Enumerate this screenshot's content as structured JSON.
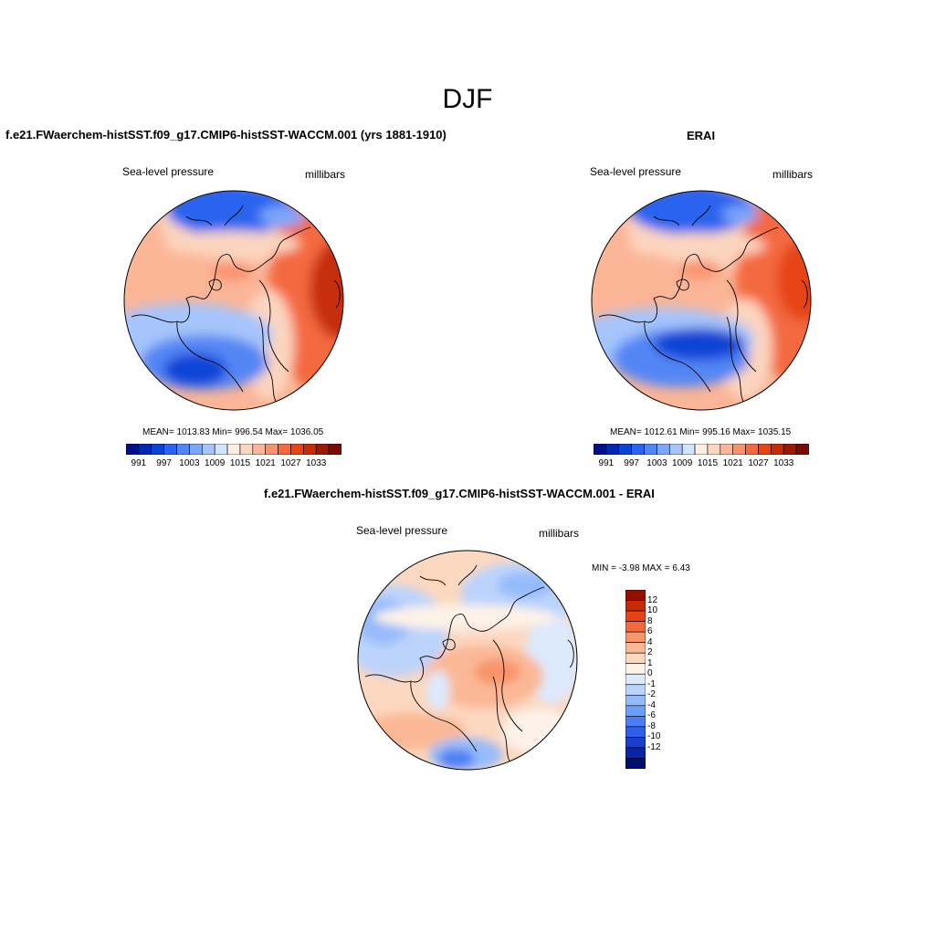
{
  "page": {
    "title": "DJF",
    "colors": {
      "full_scale": [
        "#000f8a",
        "#0026b5",
        "#0a44d7",
        "#2c63ee",
        "#5286f5",
        "#7aa6fa",
        "#a6c5fc",
        "#d2e3fd",
        "#fdeee3",
        "#fcd5bf",
        "#fbb597",
        "#f9926c",
        "#f4693f",
        "#e54414",
        "#c62d07",
        "#9a1b00",
        "#7a0b00"
      ],
      "diff_scale": [
        "#000f6e",
        "#0b23a8",
        "#1b3ed0",
        "#2e5fea",
        "#4b7ef4",
        "#6f9ef8",
        "#96bbfb",
        "#bcd3fc",
        "#dde9fd",
        "#fdf2e8",
        "#fcd8c1",
        "#fbb896",
        "#f8946a",
        "#f26a3c",
        "#e34317",
        "#c52b07",
        "#960d00"
      ]
    }
  },
  "panels": [
    {
      "title": "f.e21.FWaerchem-histSST.f09_g17.CMIP6-histSST-WACCM.001 (yrs 1881-1910)",
      "left_label": "Sea-level pressure",
      "right_label": "millibars",
      "stats": "MEAN= 1013.83  Min= 996.54  Max= 1036.05",
      "colorbar": {
        "ticks": [
          "991",
          "997",
          "1003",
          "1009",
          "1015",
          "1021",
          "1027",
          "1033"
        ]
      }
    },
    {
      "title": "ERAI",
      "left_label": "Sea-level pressure",
      "right_label": "millibars",
      "stats": "MEAN= 1012.61  Min= 995.16  Max= 1035.15",
      "colorbar": {
        "ticks": [
          "991",
          "997",
          "1003",
          "1009",
          "1015",
          "1021",
          "1027",
          "1033"
        ]
      }
    },
    {
      "title": "f.e21.FWaerchem-histSST.f09_g17.CMIP6-histSST-WACCM.001 - ERAI",
      "left_label": "Sea-level pressure",
      "right_label": "millibars",
      "stats": "MIN =  -3.98 MAX =   6.43",
      "colorbar": {
        "ticks": [
          "12",
          "10",
          "8",
          "6",
          "4",
          "2",
          "1",
          "0",
          "-1",
          "-2",
          "-4",
          "-6",
          "-8",
          "-10",
          "-12"
        ]
      }
    }
  ]
}
